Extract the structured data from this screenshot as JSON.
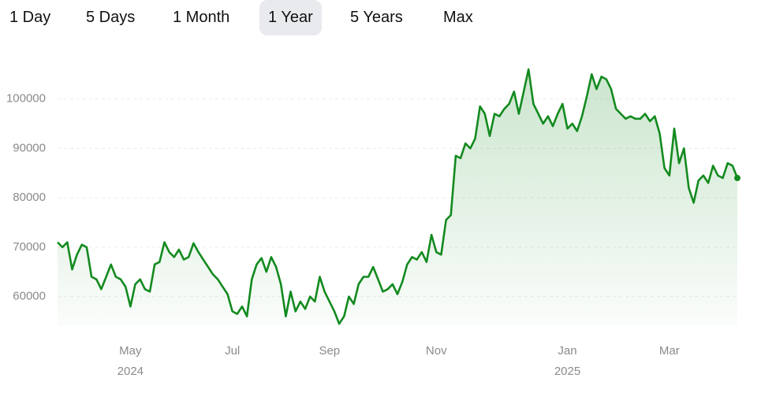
{
  "tabs": {
    "items": [
      "1 Day",
      "5 Days",
      "1 Month",
      "1 Year",
      "5 Years",
      "Max"
    ],
    "selected": 3
  },
  "chart_data": {
    "type": "line",
    "color": "#138a1f",
    "grid": true,
    "values": [
      71000,
      70000,
      71000,
      65500,
      68500,
      70500,
      70000,
      64000,
      63500,
      61500,
      64000,
      66500,
      64000,
      63500,
      62000,
      58000,
      62500,
      63500,
      61500,
      61000,
      66500,
      67000,
      71000,
      69000,
      68000,
      69500,
      67500,
      68000,
      70800,
      69000,
      67500,
      66000,
      64500,
      63500,
      62000,
      60500,
      57000,
      56500,
      58000,
      56000,
      63500,
      66500,
      67800,
      65000,
      68000,
      66000,
      62500,
      56000,
      61000,
      57000,
      59000,
      57500,
      60000,
      59000,
      64000,
      61000,
      59000,
      57000,
      54500,
      56000,
      60000,
      58500,
      62500,
      64000,
      64000,
      66000,
      63500,
      61000,
      61500,
      62500,
      60500,
      63000,
      66500,
      68000,
      67500,
      69000,
      67000,
      72500,
      69000,
      68500,
      75500,
      76500,
      88500,
      88000,
      91000,
      90000,
      92000,
      98500,
      97000,
      92500,
      97000,
      96500,
      98000,
      99000,
      101500,
      97000,
      101500,
      106000,
      99000,
      97000,
      95000,
      96500,
      94500,
      97000,
      99000,
      94000,
      95000,
      93500,
      96500,
      100500,
      105000,
      102000,
      104500,
      104000,
      102000,
      98000,
      97000,
      96000,
      96500,
      96000,
      96000,
      97000,
      95500,
      96500,
      93000,
      86000,
      84500,
      94000,
      87000,
      90000,
      82000,
      79000,
      83500,
      84500,
      83000,
      86500,
      84500,
      84000,
      87000,
      86500,
      84000
    ],
    "xlim": [
      0,
      140
    ],
    "xticks": [
      {
        "value": 15,
        "label": "May"
      },
      {
        "value": 36,
        "label": "Jul"
      },
      {
        "value": 56,
        "label": "Sep"
      },
      {
        "value": 78,
        "label": "Nov"
      },
      {
        "value": 105,
        "label": "Jan"
      },
      {
        "value": 126,
        "label": "Mar"
      }
    ],
    "x_year_ticks": [
      {
        "value": 15,
        "label": "2024"
      },
      {
        "value": 105,
        "label": "2025"
      }
    ],
    "ylim": [
      54200,
      106800
    ],
    "yticks": [
      60000,
      70000,
      80000,
      90000,
      100000
    ]
  }
}
